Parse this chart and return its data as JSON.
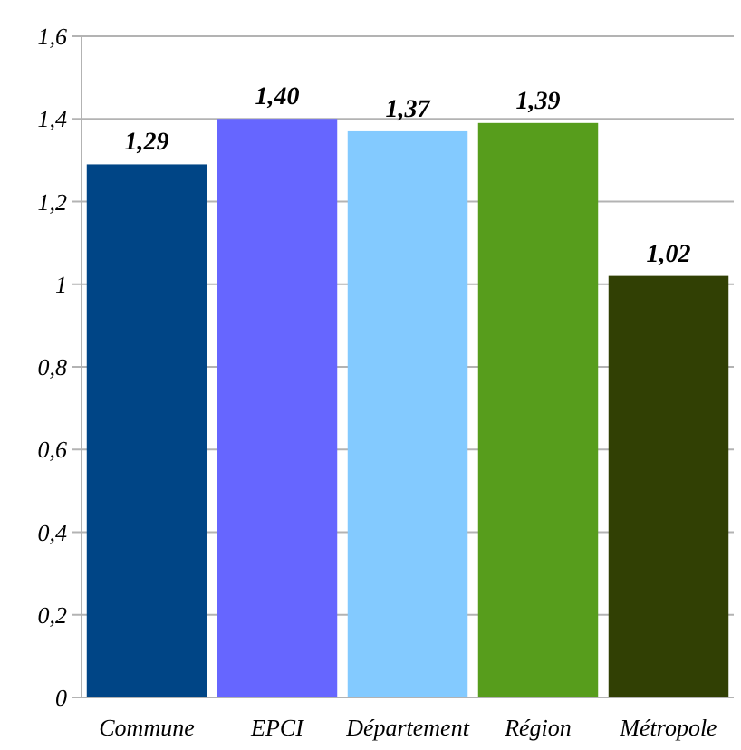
{
  "chart_data": {
    "type": "bar",
    "categories": [
      "Commune",
      "EPCI",
      "Département",
      "Région",
      "Métropole"
    ],
    "values": [
      1.29,
      1.4,
      1.37,
      1.39,
      1.02
    ],
    "colors": [
      "#004586",
      "#6666ff",
      "#83caff",
      "#579d1c",
      "#314004"
    ],
    "value_labels": [
      "1,29",
      "1,40",
      "1,37",
      "1,39",
      "1,02"
    ],
    "ylim": [
      0,
      1.6
    ],
    "yticks": [
      {
        "value": 0,
        "label": "0"
      },
      {
        "value": 0.2,
        "label": "0,2"
      },
      {
        "value": 0.4,
        "label": "0,4"
      },
      {
        "value": 0.6,
        "label": "0,6"
      },
      {
        "value": 0.8,
        "label": "0,8"
      },
      {
        "value": 1,
        "label": "1"
      },
      {
        "value": 1.2,
        "label": "1,2"
      },
      {
        "value": 1.4,
        "label": "1,4"
      },
      {
        "value": 1.6,
        "label": "1,6"
      }
    ],
    "grid": "y"
  }
}
